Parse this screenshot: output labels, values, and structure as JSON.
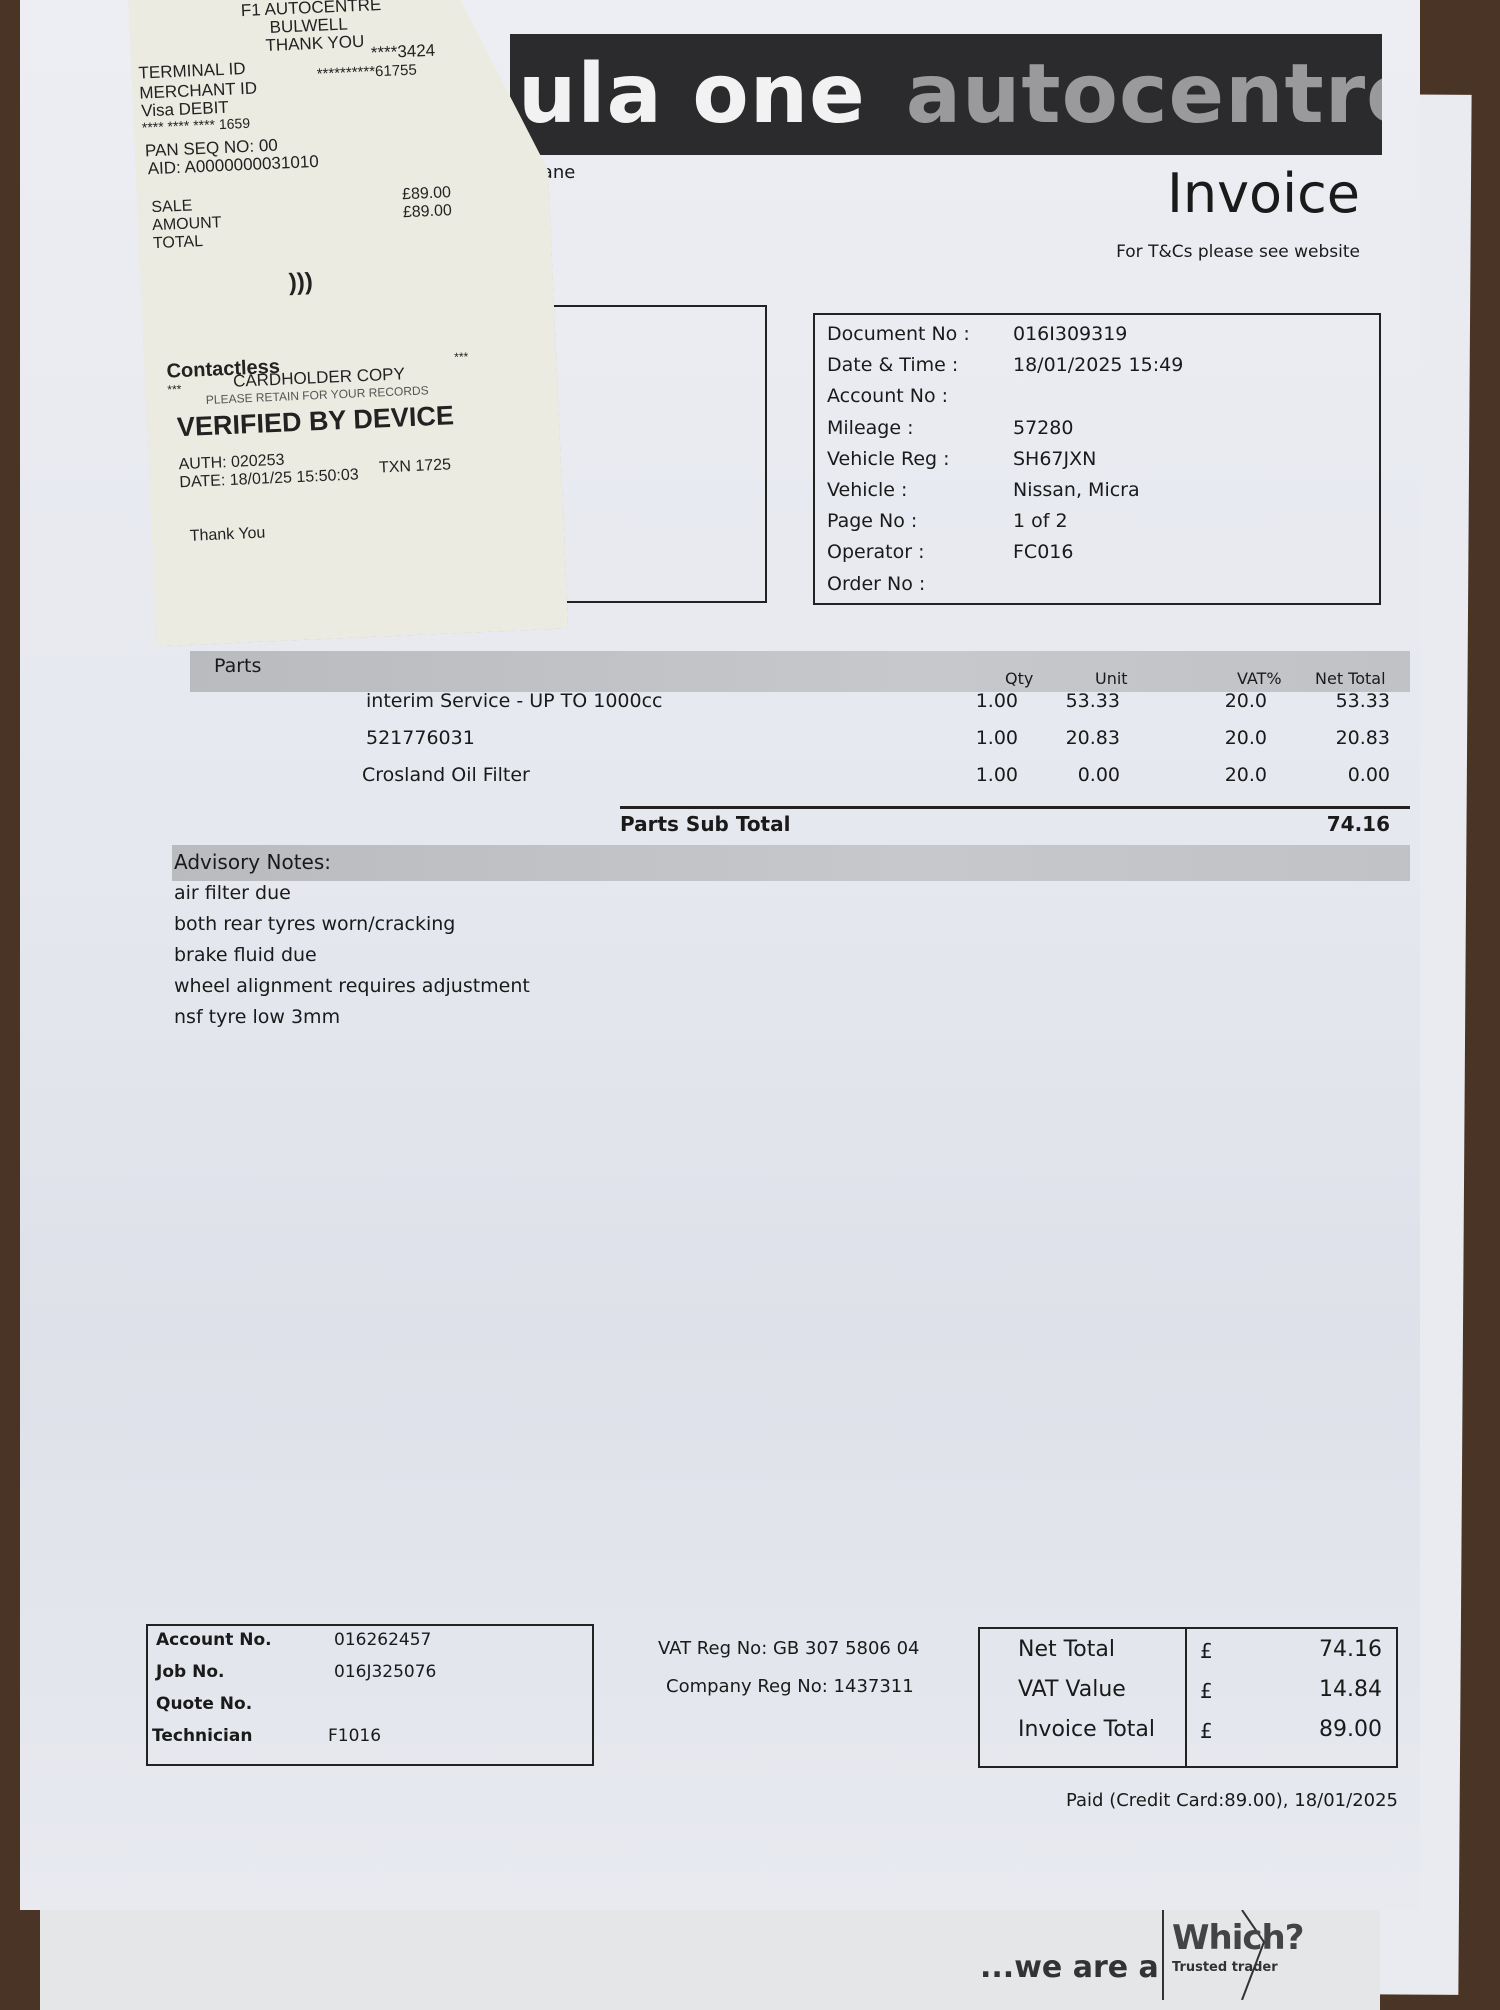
{
  "header": {
    "brand_white": "ula one",
    "brand_grey": "autocentres",
    "address_fragment": "all Lane",
    "title": "Invoice",
    "tc_note": "For T&Cs please see website"
  },
  "details": [
    {
      "label": "Document No :",
      "value": "016I309319"
    },
    {
      "label": "Date & Time :",
      "value": "18/01/2025 15:49"
    },
    {
      "label": "Account No :",
      "value": ""
    },
    {
      "label": "Mileage :",
      "value": "57280"
    },
    {
      "label": "Vehicle Reg :",
      "value": "SH67JXN"
    },
    {
      "label": "Vehicle :",
      "value": "Nissan, Micra"
    },
    {
      "label": "Page No :",
      "value": "1 of 2"
    },
    {
      "label": "Operator :",
      "value": "FC016"
    },
    {
      "label": "Order No :",
      "value": ""
    }
  ],
  "parts": {
    "title": "Parts",
    "columns": [
      "Qty",
      "Unit",
      "VAT%",
      "Net Total"
    ],
    "rows": [
      {
        "desc": "interim Service - UP TO 1000cc",
        "qty": "1.00",
        "unit": "53.33",
        "vat": "20.0",
        "net": "53.33"
      },
      {
        "desc": "521776031",
        "qty": "1.00",
        "unit": "20.83",
        "vat": "20.0",
        "net": "20.83"
      },
      {
        "desc": "Crosland Oil Filter",
        "qty": "1.00",
        "unit": "0.00",
        "vat": "20.0",
        "net": "0.00"
      }
    ],
    "subtotal_label": "Parts Sub Total",
    "subtotal": "74.16"
  },
  "advisory": {
    "title": "Advisory Notes:",
    "notes": [
      "air filter due",
      "both rear tyres worn/cracking",
      "brake fluid due",
      "wheel alignment requires adjustment",
      "nsf tyre low 3mm"
    ]
  },
  "account_box": [
    {
      "label": "Account No.",
      "value": "016262457"
    },
    {
      "label": "Job No.",
      "value": "016J325076"
    },
    {
      "label": "Quote No.",
      "value": ""
    },
    {
      "label": "Technician",
      "value": "F1016"
    }
  ],
  "registration": {
    "vat": "VAT Reg No: GB 307 5806 04",
    "company": "Company Reg No: 1437311"
  },
  "totals": [
    {
      "label": "Net Total",
      "currency": "£",
      "value": "74.16"
    },
    {
      "label": "VAT Value",
      "currency": "£",
      "value": "14.84"
    },
    {
      "label": "Invoice Total",
      "currency": "£",
      "value": "89.00"
    }
  ],
  "paid_note": "Paid (Credit Card:89.00), 18/01/2025",
  "footer": {
    "tagline": "...we are a",
    "logo_text": "Which?",
    "logo_sub": "Trusted trader"
  },
  "receipt": {
    "header": [
      "F1 AUTOCENTRE",
      "BULWELL",
      "THANK YOU"
    ],
    "terminal_label": "TERMINAL ID",
    "terminal_value": "****3424",
    "merchant_label": "MERCHANT ID",
    "merchant_value": "**********61755",
    "card_type": "Visa DEBIT",
    "card_number": "**** **** **** 1659",
    "pan_seq": "PAN SEQ NO: 00",
    "aid": "AID: A0000000031010",
    "sale": "SALE",
    "amount_label": "AMOUNT",
    "amount": "£89.00",
    "total_label": "TOTAL",
    "total": "£89.00",
    "method": "Contactless",
    "stars": "***",
    "copy": "CARDHOLDER COPY",
    "retain": "PLEASE RETAIN FOR YOUR RECORDS",
    "verified": "VERIFIED BY DEVICE",
    "auth": "AUTH: 020253",
    "date": "DATE: 18/01/25 15:50:03",
    "txn": "TXN 1725",
    "thanks": "Thank You"
  }
}
